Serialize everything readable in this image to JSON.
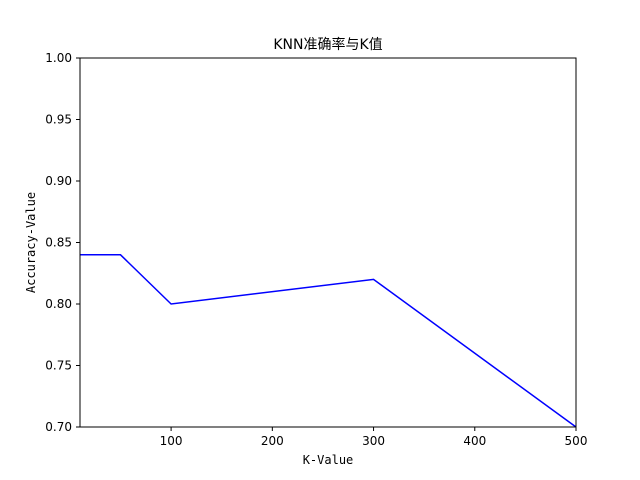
{
  "chart_data": {
    "type": "line",
    "title": "KNN准确率与K值",
    "xlabel": "K-Value",
    "ylabel": "Accuracy-Value",
    "xlim": [
      10,
      500
    ],
    "ylim": [
      0.7,
      1.0
    ],
    "x_ticks": [
      100,
      200,
      300,
      400,
      500
    ],
    "y_ticks": [
      0.7,
      0.75,
      0.8,
      0.85,
      0.9,
      0.95,
      1.0
    ],
    "x_tick_labels": [
      "100",
      "200",
      "300",
      "400",
      "500"
    ],
    "y_tick_labels": [
      "0.70",
      "0.75",
      "0.80",
      "0.85",
      "0.90",
      "0.95",
      "1.00"
    ],
    "grid": false,
    "series": [
      {
        "color": "#0000ff",
        "x": [
          10,
          50,
          100,
          300,
          500
        ],
        "y": [
          0.84,
          0.84,
          0.8,
          0.82,
          0.7
        ]
      }
    ]
  }
}
